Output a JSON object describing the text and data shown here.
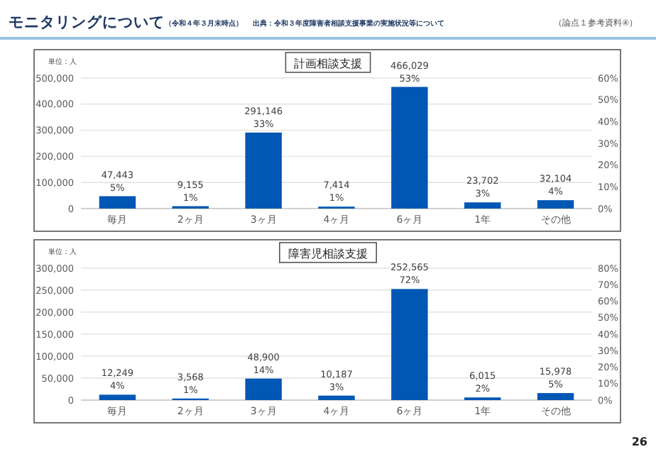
{
  "chart_data": [
    {
      "type": "bar",
      "title": "計画相談支援",
      "annotations": [
        "モニタリングについて",
        "（令和４年３月末時点）",
        "出典：令和３年度障害者相談支援事業の実施状況等について",
        "（論点１参考資料④）",
        "単位：人"
      ],
      "categories": [
        "毎月",
        "2ヶ月",
        "3ヶ月",
        "4ヶ月",
        "6ヶ月",
        "1年",
        "その他"
      ],
      "values": [
        47443,
        9155,
        291146,
        7414,
        466029,
        23702,
        32104
      ],
      "color": "#0057b4",
      "value_labels": [
        "47,443\n5%",
        "9,155\n1%",
        "291,146\n33%",
        "7,414\n1%",
        "466,029\n53%",
        "23,702\n3%",
        "32,104\n4%"
      ],
      "ylim": [
        0,
        500000
      ],
      "yticks": [
        0,
        {
          "value": 100000,
          "label": "100,000"
        },
        {
          "value": 200000,
          "label": "200,000"
        },
        {
          "value": 300000,
          "label": "300,000"
        },
        {
          "value": 400000,
          "label": "400,000"
        },
        {
          "value": 500000,
          "label": "500,000"
        }
      ],
      "y2lim": [
        0,
        60
      ],
      "y2ticks": [
        {
          "value": 0,
          "label": "0%"
        },
        {
          "value": 10,
          "label": "10%"
        },
        {
          "value": 20,
          "label": "20%"
        },
        {
          "value": 30,
          "label": "30%"
        },
        {
          "value": 40,
          "label": "40%"
        },
        {
          "value": 50,
          "label": "50%"
        },
        {
          "value": 60,
          "label": "60%"
        }
      ],
      "grid": "y"
    },
    {
      "type": "bar",
      "title": "障害児相談支援",
      "annotations": [
        "単位：人",
        "26"
      ],
      "categories": [
        "毎月",
        "2ヶ月",
        "3ヶ月",
        "4ヶ月",
        "6ヶ月",
        "1年",
        "その他"
      ],
      "values": [
        12249,
        3568,
        48900,
        10187,
        252565,
        6015,
        15978
      ],
      "color": "#0057b4",
      "value_labels": [
        "12,249\n4%",
        "3,568\n1%",
        "48,900\n14%",
        "10,187\n3%",
        "252,565\n72%",
        "6,015\n2%",
        "15,978\n5%"
      ],
      "ylim": [
        0,
        300000
      ],
      "yticks": [
        0,
        {
          "value": 50000,
          "label": "50,000"
        },
        {
          "value": 100000,
          "label": "100,000"
        },
        {
          "value": 150000,
          "label": "150,000"
        },
        {
          "value": 200000,
          "label": "200,000"
        },
        {
          "value": 250000,
          "label": "250,000"
        },
        {
          "value": 300000,
          "label": "300,000"
        }
      ],
      "y2lim": [
        0,
        80
      ],
      "y2ticks": [
        {
          "value": 0,
          "label": "0%"
        },
        {
          "value": 10,
          "label": "10%"
        },
        {
          "value": 20,
          "label": "20%"
        },
        {
          "value": 30,
          "label": "30%"
        },
        {
          "value": 40,
          "label": "40%"
        },
        {
          "value": 50,
          "label": "50%"
        },
        {
          "value": 60,
          "label": "60%"
        },
        {
          "value": 70,
          "label": "70%"
        },
        {
          "value": 80,
          "label": "80%"
        }
      ],
      "grid": "y"
    }
  ]
}
